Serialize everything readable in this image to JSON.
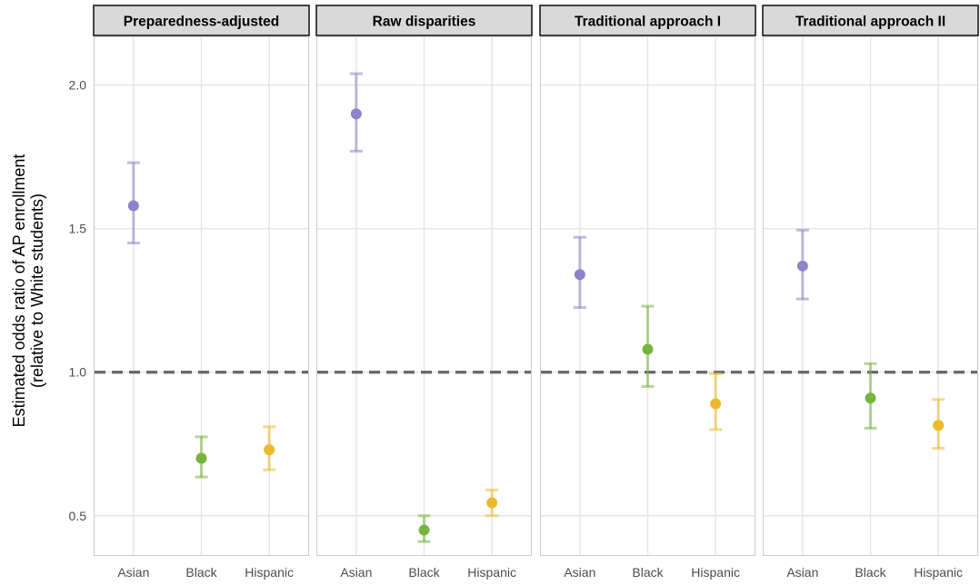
{
  "chart_data": {
    "type": "errorbar",
    "facet_by": "approach",
    "ylabel": [
      "Estimated odds ratio of AP enrollment",
      "(relative to White students)"
    ],
    "xlabel": "",
    "ylim": [
      0.36,
      2.17
    ],
    "y_ticks": [
      0.5,
      1.0,
      1.5,
      2.0
    ],
    "y_tick_labels": [
      "0.5",
      "1.0",
      "1.5",
      "2.0"
    ],
    "categories": [
      "Asian",
      "Black",
      "Hispanic"
    ],
    "reference_line": 1.0,
    "grid": true,
    "legend": "none",
    "colors": {
      "Asian": "#8c85c8",
      "Black": "#77b43f",
      "Hispanic": "#ebb92b",
      "reference_line": "#666666",
      "grid": "#e5e5e5",
      "strip_fill": "#d9d9d9",
      "strip_border": "#1a1a1a",
      "panel_border": "#cccccc"
    },
    "panels": [
      {
        "title": "Preparedness-adjusted",
        "points": [
          {
            "group": "Asian",
            "estimate": 1.58,
            "lower": 1.45,
            "upper": 1.73
          },
          {
            "group": "Black",
            "estimate": 0.7,
            "lower": 0.635,
            "upper": 0.775
          },
          {
            "group": "Hispanic",
            "estimate": 0.73,
            "lower": 0.66,
            "upper": 0.81
          }
        ]
      },
      {
        "title": "Raw disparities",
        "points": [
          {
            "group": "Asian",
            "estimate": 1.9,
            "lower": 1.77,
            "upper": 2.04
          },
          {
            "group": "Black",
            "estimate": 0.45,
            "lower": 0.41,
            "upper": 0.5
          },
          {
            "group": "Hispanic",
            "estimate": 0.545,
            "lower": 0.5,
            "upper": 0.59
          }
        ]
      },
      {
        "title": "Traditional approach I",
        "points": [
          {
            "group": "Asian",
            "estimate": 1.34,
            "lower": 1.225,
            "upper": 1.47
          },
          {
            "group": "Black",
            "estimate": 1.08,
            "lower": 0.95,
            "upper": 1.23
          },
          {
            "group": "Hispanic",
            "estimate": 0.89,
            "lower": 0.8,
            "upper": 0.995
          }
        ]
      },
      {
        "title": "Traditional approach II",
        "points": [
          {
            "group": "Asian",
            "estimate": 1.37,
            "lower": 1.255,
            "upper": 1.495
          },
          {
            "group": "Black",
            "estimate": 0.91,
            "lower": 0.805,
            "upper": 1.03
          },
          {
            "group": "Hispanic",
            "estimate": 0.815,
            "lower": 0.735,
            "upper": 0.905
          }
        ]
      }
    ]
  }
}
